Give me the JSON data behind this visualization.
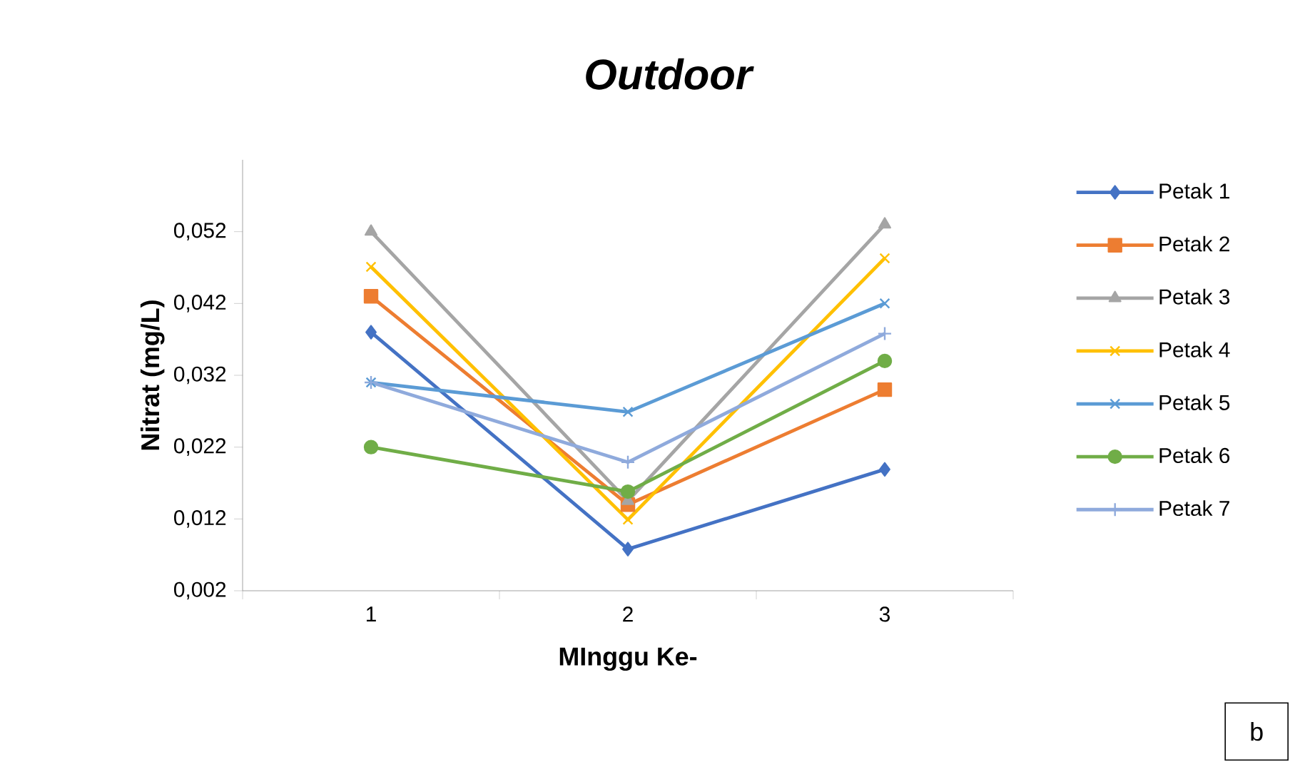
{
  "chart_data": {
    "type": "line",
    "title": "Outdoor",
    "xlabel": "MInggu Ke-",
    "ylabel": "Nitrat (mg/L)",
    "categories": [
      "1",
      "2",
      "3"
    ],
    "series": [
      {
        "name": "Petak 1",
        "color": "#4472c4",
        "marker": "diamond",
        "values": [
          0.038,
          0.0078,
          0.0189
        ]
      },
      {
        "name": "Petak 2",
        "color": "#ed7d31",
        "marker": "square",
        "values": [
          0.043,
          0.014,
          0.03
        ]
      },
      {
        "name": "Petak 3",
        "color": "#a5a5a5",
        "marker": "triangle",
        "values": [
          0.052,
          0.0145,
          0.053
        ]
      },
      {
        "name": "Petak 4",
        "color": "#ffc000",
        "marker": "cross",
        "values": [
          0.0471,
          0.0119,
          0.0483
        ]
      },
      {
        "name": "Petak 5",
        "color": "#5b9bd5",
        "marker": "cross",
        "values": [
          0.031,
          0.0269,
          0.042
        ]
      },
      {
        "name": "Petak 6",
        "color": "#70ad47",
        "marker": "circle",
        "values": [
          0.022,
          0.0158,
          0.034
        ]
      },
      {
        "name": "Petak 7",
        "color": "#8faadc",
        "marker": "plus",
        "values": [
          0.031,
          0.0199,
          0.0378
        ]
      }
    ],
    "ylim": [
      0.002,
      0.062
    ],
    "yticks": [
      {
        "value": 0.002,
        "label": "0,002"
      },
      {
        "value": 0.012,
        "label": "0,012"
      },
      {
        "value": 0.022,
        "label": "0,022"
      },
      {
        "value": 0.032,
        "label": "0,032"
      },
      {
        "value": 0.042,
        "label": "0,042"
      },
      {
        "value": 0.052,
        "label": "0,052"
      }
    ],
    "grid": false,
    "legend": "right",
    "line_style": "solid",
    "annotations": [
      "b"
    ]
  }
}
